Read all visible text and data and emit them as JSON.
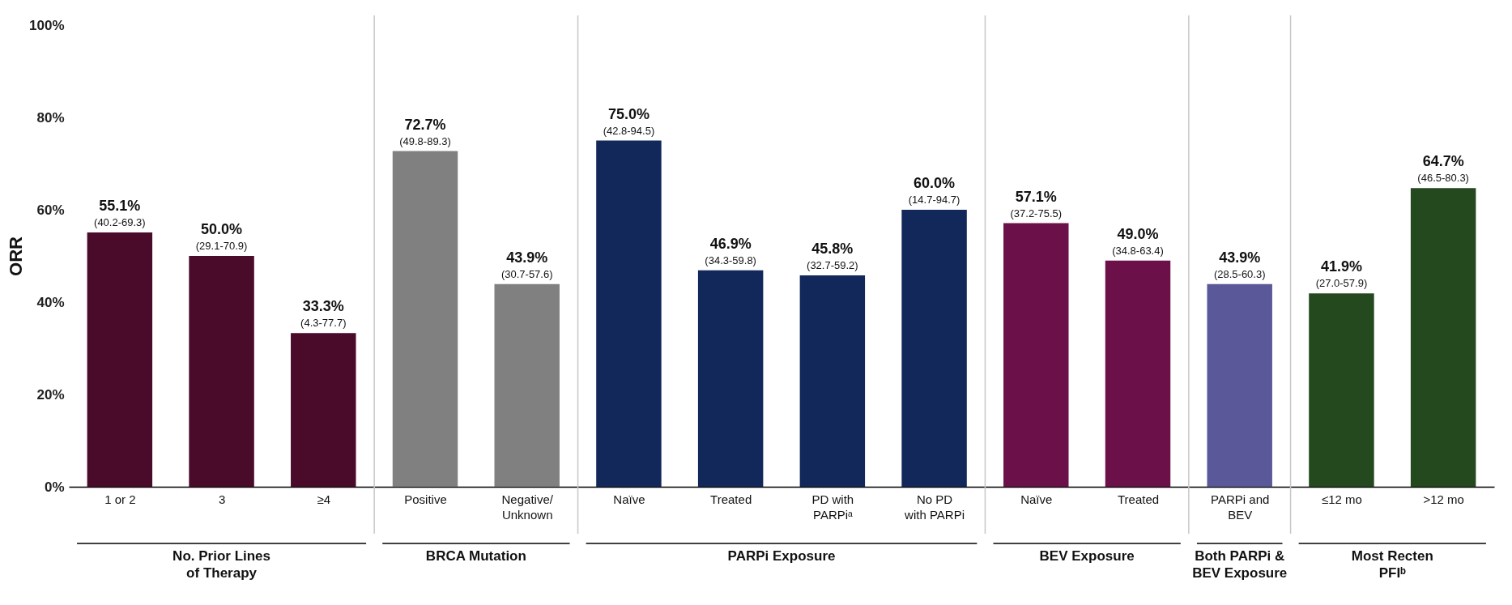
{
  "chart_data": {
    "type": "bar",
    "ylabel": "ORR",
    "categories": [
      "1 or 2",
      "3",
      "≥4",
      "Positive",
      "Negative/\nUnknown",
      "Naïve",
      "Treated",
      "PD with\nPARPiᵃ",
      "No PD\nwith PARPi",
      "Naïve",
      "Treated",
      "PARPi and\nBEV",
      "≤12 mo",
      ">12 mo"
    ],
    "values": [
      55.1,
      50.0,
      33.3,
      72.7,
      43.9,
      75.0,
      46.9,
      45.8,
      60.0,
      57.1,
      49.0,
      43.9,
      41.9,
      64.7
    ],
    "colors": [
      "#4a0a2a",
      "#4a0a2a",
      "#4a0a2a",
      "#808080",
      "#808080",
      "#13285a",
      "#13285a",
      "#13285a",
      "#13285a",
      "#6b1048",
      "#6b1048",
      "#5a5898",
      "#24491f",
      "#24491f"
    ],
    "value_labels": [
      "55.1%\n(40.2-69.3)",
      "50.0%\n(29.1-70.9)",
      "33.3%\n(4.3-77.7)",
      "72.7%\n(49.8-89.3)",
      "43.9%\n(30.7-57.6)",
      "75.0%\n(42.8-94.5)",
      "46.9%\n(34.3-59.8)",
      "45.8%\n(32.7-59.2)",
      "60.0%\n(14.7-94.7)",
      "57.1%\n(37.2-75.5)",
      "49.0%\n(34.8-63.4)",
      "43.9%\n(28.5-60.3)",
      "41.9%\n(27.0-57.9)",
      "64.7%\n(46.5-80.3)"
    ],
    "ylim": [
      0,
      100
    ],
    "yticks": [
      {
        "value": 0,
        "label": "0%"
      },
      {
        "value": 20,
        "label": "20%"
      },
      {
        "value": 40,
        "label": "40%"
      },
      {
        "value": 60,
        "label": "60%"
      },
      {
        "value": 80,
        "label": "80%"
      },
      {
        "value": 100,
        "label": "100%"
      }
    ],
    "annotations": [
      "No. Prior Lines\nof Therapy",
      "BRCA Mutation",
      "PARPi Exposure",
      "BEV Exposure",
      "Both PARPi &\nBEV Exposure",
      "Most Recten\nPFIᵇ"
    ],
    "grid": false
  }
}
